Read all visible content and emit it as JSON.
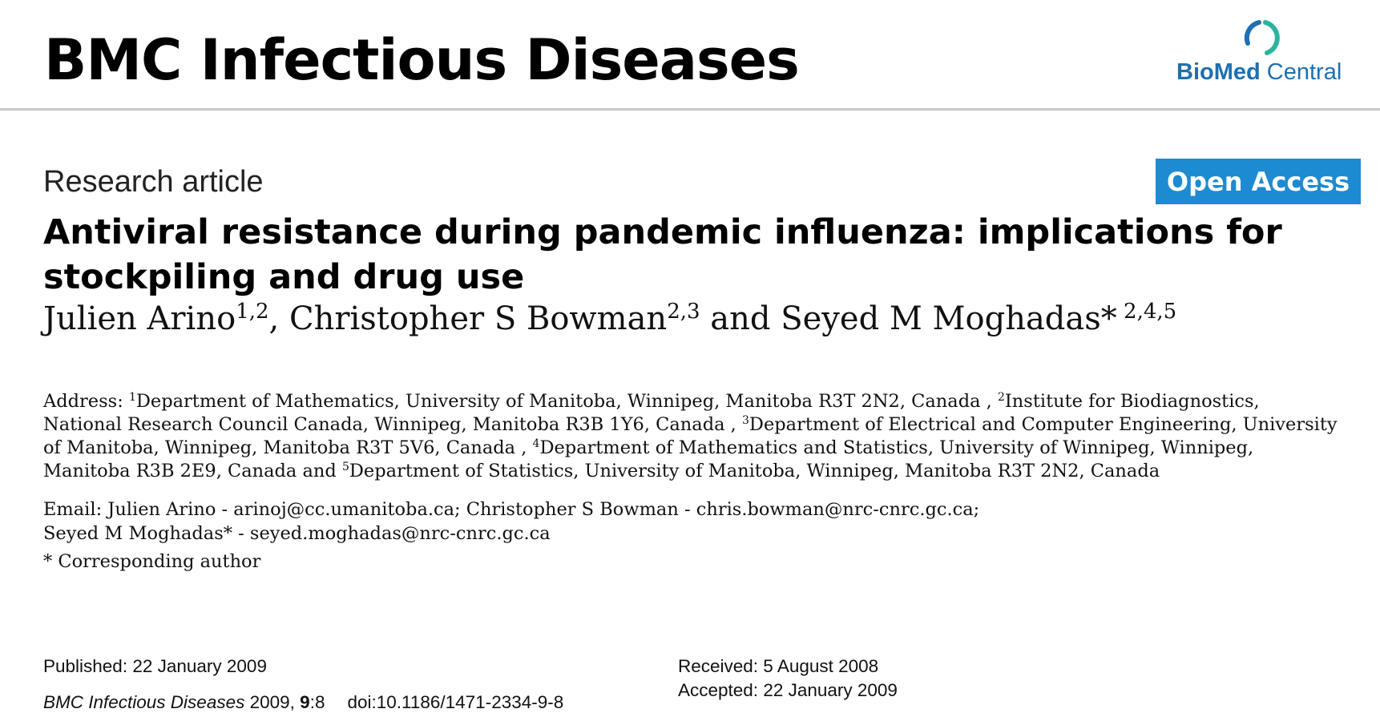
{
  "header": {
    "journal_title": "BMC Infectious Diseases",
    "publisher_logo": {
      "part1": "BioMed",
      "part2": " Central"
    }
  },
  "article": {
    "type": "Research article",
    "open_access": "Open Access",
    "title": "Antiviral resistance during pandemic influenza: implications for stockpiling and drug use",
    "authors": [
      {
        "name": "Julien Arino",
        "affil": "1,2",
        "sep": ", "
      },
      {
        "name": "Christopher S Bowman",
        "affil": "2,3",
        "sep": " and "
      },
      {
        "name": "Seyed M Moghadas*",
        "affil": " 2,4,5",
        "sep": ""
      }
    ],
    "address_label": "Address: ",
    "affiliations": [
      {
        "num": "1",
        "text": "Department of Mathematics, University of Manitoba, Winnipeg, Manitoba R3T 2N2, Canada , "
      },
      {
        "num": "2",
        "text": "Institute for Biodiagnostics, National Research Council Canada, Winnipeg, Manitoba R3B 1Y6, Canada , "
      },
      {
        "num": "3",
        "text": "Department of Electrical and Computer Engineering, University of Manitoba, Winnipeg, Manitoba R3T 5V6, Canada , "
      },
      {
        "num": "4",
        "text": "Department of Mathematics and Statistics, University of Winnipeg, Winnipeg, Manitoba R3B 2E9, Canada  and "
      },
      {
        "num": "5",
        "text": "Department of Statistics, University of Manitoba, Winnipeg, Manitoba R3T 2N2, Canada"
      }
    ],
    "email_line1": "Email: Julien Arino - arinoj@cc.umanitoba.ca; Christopher S Bowman - chris.bowman@nrc-cnrc.gc.ca;",
    "email_line2": "Seyed M Moghadas* - seyed.moghadas@nrc-cnrc.gc.ca",
    "corresponding": "* Corresponding author"
  },
  "publication": {
    "published": "Published: 22 January 2009",
    "citation_journal": "BMC Infectious Diseases",
    "citation_year": " 2009, ",
    "citation_volume": "9",
    "citation_article": ":8",
    "doi": "doi:10.1186/1471-2334-9-8",
    "received": "Received: 5 August 2008",
    "accepted": "Accepted: 22 January 2009"
  },
  "colors": {
    "accent_blue": "#1d8bd1",
    "logo_blue": "#1f6fb0",
    "logo_green": "#2bb3a0",
    "rule_gray": "#c9c9c9"
  }
}
